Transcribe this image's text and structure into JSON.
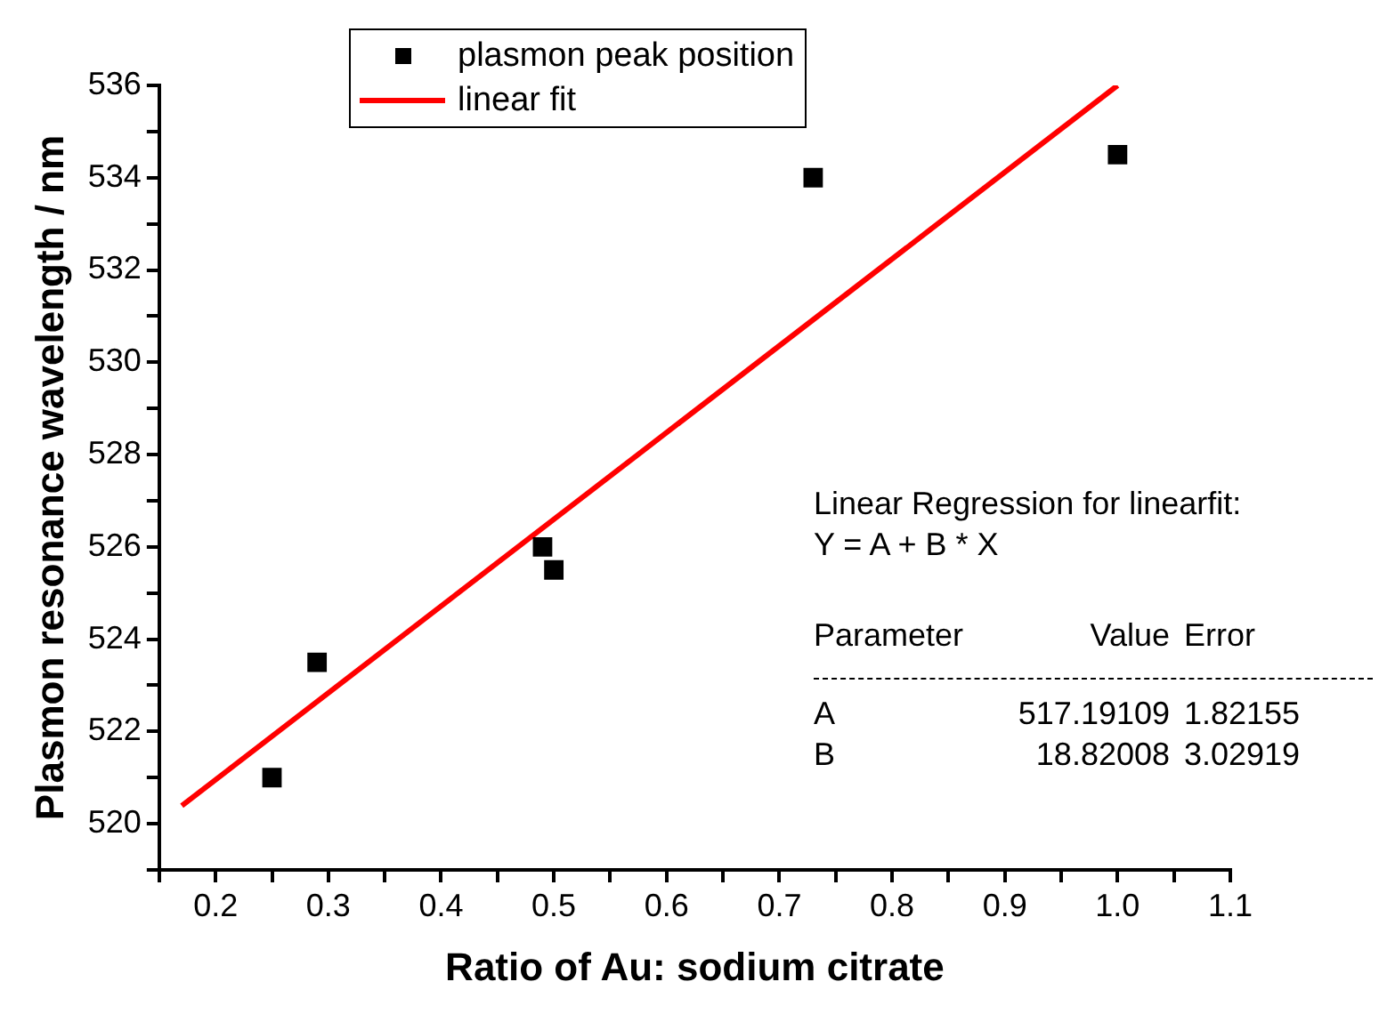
{
  "chart_data": {
    "type": "scatter",
    "xlabel": "Ratio of Au: sodium citrate",
    "ylabel": "Plasmon resonance wavelength / nm",
    "xlim": [
      0.15,
      1.1
    ],
    "ylim": [
      519,
      536
    ],
    "xticks": [
      {
        "value": 0.15,
        "label": null
      },
      0.2,
      {
        "value": 0.25,
        "label": null
      },
      0.3,
      {
        "value": 0.35,
        "label": null
      },
      0.4,
      {
        "value": 0.45,
        "label": null
      },
      0.5,
      {
        "value": 0.55,
        "label": null
      },
      0.6,
      {
        "value": 0.65,
        "label": null
      },
      0.7,
      {
        "value": 0.75,
        "label": null
      },
      0.8,
      {
        "value": 0.85,
        "label": null
      },
      0.9,
      {
        "value": 0.95,
        "label": null
      },
      {
        "value": 1.0,
        "label": "1.0"
      },
      {
        "value": 1.05,
        "label": null
      },
      1.1
    ],
    "yticks": [
      {
        "value": 519,
        "label": null
      },
      520,
      {
        "value": 521,
        "label": null
      },
      522,
      {
        "value": 523,
        "label": null
      },
      524,
      {
        "value": 525,
        "label": null
      },
      526,
      {
        "value": 527,
        "label": null
      },
      528,
      {
        "value": 529,
        "label": null
      },
      530,
      {
        "value": 531,
        "label": null
      },
      532,
      {
        "value": 533,
        "label": null
      },
      534,
      {
        "value": 535,
        "label": null
      },
      536
    ],
    "grid": false,
    "legend": "top left",
    "series": [
      {
        "name": "plasmon peak position",
        "type": "scatter",
        "marker": "square",
        "color": "#000000",
        "x": [
          0.25,
          0.29,
          0.49,
          0.5,
          0.73,
          1.0
        ],
        "values": [
          521,
          523.5,
          526,
          525.5,
          534,
          534.5
        ]
      },
      {
        "name": "linear fit",
        "type": "line",
        "marker": "none",
        "color": "#ff0000",
        "x": [
          0.17,
          1.0
        ],
        "values": [
          520.39,
          536.0
        ]
      }
    ],
    "annotations": [
      "Linear Regression for linearfit:",
      "Y = A + B * X",
      "Parameter",
      "Value",
      "Error",
      "A",
      "517.19109",
      "1.82155",
      "B",
      "18.82008",
      "3.02919"
    ]
  }
}
